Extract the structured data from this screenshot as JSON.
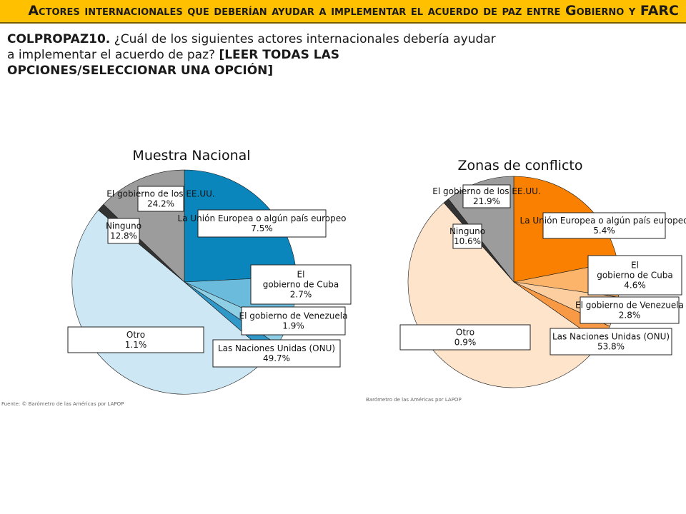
{
  "title": "Actores internacionales que deberían ayudar a implementar el acuerdo de paz entre Gobierno y FARC",
  "question": {
    "code": "COLPROPAZ10.",
    "text": " ¿Cuál de los siguientes actores internacionales debería ayudar a implementar el acuerdo de paz? ",
    "instruction": "[LEER TODAS LAS OPCIONES/SELECCIONAR UNA OPCIÓN]"
  },
  "chart_data": [
    {
      "type": "pie",
      "title": "Muestra Nacional",
      "source": "Fuente: © Barómetro de las Américas por LAPOP",
      "slices": [
        {
          "label": "El gobierno de los EE.UU.",
          "value": 24.2,
          "value_label": "24.2%",
          "color": "#0a86bd"
        },
        {
          "label": "La Unión Europea o algún país europeo",
          "value": 7.5,
          "value_label": "7.5%",
          "color": "#6bbcdc"
        },
        {
          "label": "El gobierno de Cuba",
          "value": 2.7,
          "value_label": "2.7%",
          "color": "#8fcfe6"
        },
        {
          "label": "El gobierno de Venezuela",
          "value": 1.9,
          "value_label": "1.9%",
          "color": "#2f98c8"
        },
        {
          "label": "Las Naciones Unidas (ONU)",
          "value": 49.7,
          "value_label": "49.7%",
          "color": "#cde8f4"
        },
        {
          "label": "Otro",
          "value": 1.1,
          "value_label": "1.1%",
          "color": "#333333"
        },
        {
          "label": "Ninguno",
          "value": 12.8,
          "value_label": "12.8%",
          "color": "#9c9c9c"
        }
      ]
    },
    {
      "type": "pie",
      "title": "Zonas de conflicto",
      "source": "Barómetro de las Américas por LAPOP",
      "slices": [
        {
          "label": "El gobierno de los EE.UU.",
          "value": 21.9,
          "value_label": "21.9%",
          "color": "#f98000"
        },
        {
          "label": "La Unión Europea o algún país europeo",
          "value": 5.4,
          "value_label": "5.4%",
          "color": "#fbb46a"
        },
        {
          "label": "El gobierno de Cuba",
          "value": 4.6,
          "value_label": "4.6%",
          "color": "#fdcfa0"
        },
        {
          "label": "El gobierno de Venezuela",
          "value": 2.8,
          "value_label": "2.8%",
          "color": "#f89a45"
        },
        {
          "label": "Las Naciones Unidas (ONU)",
          "value": 53.8,
          "value_label": "53.8%",
          "color": "#fde4cb"
        },
        {
          "label": "Otro",
          "value": 0.9,
          "value_label": "0.9%",
          "color": "#333333"
        },
        {
          "label": "Ninguno",
          "value": 10.6,
          "value_label": "10.6%",
          "color": "#9c9c9c"
        }
      ]
    }
  ]
}
